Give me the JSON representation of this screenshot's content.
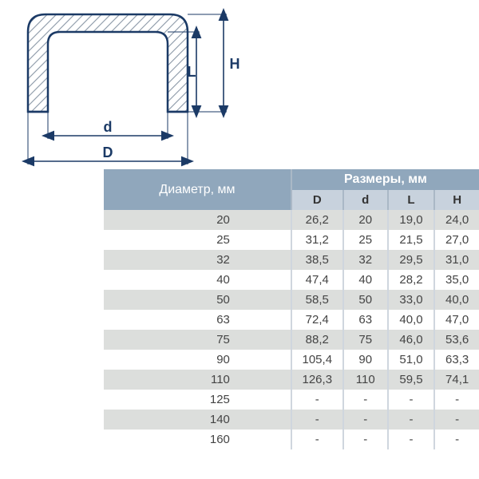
{
  "diagram": {
    "label_D": "D",
    "label_d": "d",
    "label_L": "L",
    "label_H": "H",
    "stroke": "#1b3a66",
    "hatch": "#8a97a6",
    "arrow": "#1b3a66",
    "label_color": "#1b3a66"
  },
  "table": {
    "header_bg": "#90a7bc",
    "header_sub_bg": "#c8d2dd",
    "header_fg": "#ffffff",
    "row_even_bg": "#dcdedc",
    "row_odd_bg": "#ffffff",
    "cell_fg": "#444444",
    "border_color": "#cfd6de",
    "col_diam_width": 175,
    "col_D_width": 66,
    "col_d_width": 58,
    "col_L_width": 60,
    "col_H_width": 58,
    "font_size": 15,
    "diameter_header": "Диаметр, мм",
    "dimensions_header": "Размеры, мм",
    "sub_headers": {
      "D": "D",
      "d": "d",
      "L": "L",
      "H": "H"
    },
    "rows": [
      {
        "diameter": "20",
        "D": "26,2",
        "d": "20",
        "L": "19,0",
        "H": "24,0"
      },
      {
        "diameter": "25",
        "D": "31,2",
        "d": "25",
        "L": "21,5",
        "H": "27,0"
      },
      {
        "diameter": "32",
        "D": "38,5",
        "d": "32",
        "L": "29,5",
        "H": "31,0"
      },
      {
        "diameter": "40",
        "D": "47,4",
        "d": "40",
        "L": "28,2",
        "H": "35,0"
      },
      {
        "diameter": "50",
        "D": "58,5",
        "d": "50",
        "L": "33,0",
        "H": "40,0"
      },
      {
        "diameter": "63",
        "D": "72,4",
        "d": "63",
        "L": "40,0",
        "H": "47,0"
      },
      {
        "diameter": "75",
        "D": "88,2",
        "d": "75",
        "L": "46,0",
        "H": "53,6"
      },
      {
        "diameter": "90",
        "D": "105,4",
        "d": "90",
        "L": "51,0",
        "H": "63,3"
      },
      {
        "diameter": "110",
        "D": "126,3",
        "d": "110",
        "L": "59,5",
        "H": "74,1"
      },
      {
        "diameter": "125",
        "D": "-",
        "d": "-",
        "L": "-",
        "H": "-"
      },
      {
        "diameter": "140",
        "D": "-",
        "d": "-",
        "L": "-",
        "H": "-"
      },
      {
        "diameter": "160",
        "D": "-",
        "d": "-",
        "L": "-",
        "H": "-"
      }
    ]
  }
}
